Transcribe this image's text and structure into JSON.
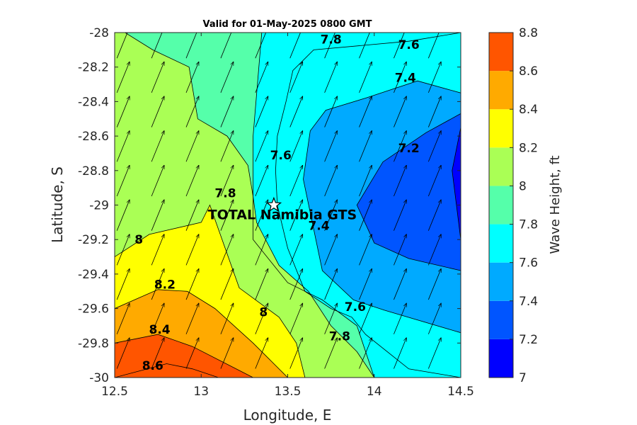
{
  "chart_data": {
    "type": "heatmap",
    "subtype": "filled-contour-with-wind-vectors",
    "title": "Valid for 01-May-2025 0800 GMT",
    "xlabel": "Longitude, E",
    "ylabel": "Latitude, S",
    "xlim": [
      12.5,
      14.5
    ],
    "ylim": [
      -30,
      -28
    ],
    "x_ticks": [
      "12.5",
      "13",
      "13.5",
      "14",
      "14.5"
    ],
    "y_ticks": [
      "-28",
      "-28.2",
      "-28.4",
      "-28.6",
      "-28.8",
      "-29",
      "-29.2",
      "-29.4",
      "-29.6",
      "-29.8",
      "-30"
    ],
    "grid": false,
    "colorbar": {
      "label": "Wave Height, ft",
      "placement": "right",
      "levels": [
        7.0,
        7.2,
        7.4,
        7.6,
        7.8,
        8.0,
        8.2,
        8.4,
        8.6,
        8.8
      ],
      "tick_labels": [
        "7",
        "7.2",
        "7.4",
        "7.6",
        "7.8",
        "8",
        "8.2",
        "8.4",
        "8.6",
        "8.8"
      ],
      "colors": [
        "#0000ff",
        "#0055ff",
        "#00aaff",
        "#00ffff",
        "#55ffaa",
        "#aaff55",
        "#ffff00",
        "#ffaa00",
        "#ff5500"
      ]
    },
    "contour_labels": [
      {
        "text": "7.8",
        "lon": 13.75,
        "lat": -28.04
      },
      {
        "text": "7.6",
        "lon": 14.2,
        "lat": -28.07
      },
      {
        "text": "7.4",
        "lon": 14.18,
        "lat": -28.26
      },
      {
        "text": "7.2",
        "lon": 14.2,
        "lat": -28.67
      },
      {
        "text": "7.6",
        "lon": 13.46,
        "lat": -28.71
      },
      {
        "text": "7.8",
        "lon": 13.14,
        "lat": -28.93
      },
      {
        "text": "8",
        "lon": 12.64,
        "lat": -29.2
      },
      {
        "text": "7.4",
        "lon": 13.68,
        "lat": -29.12
      },
      {
        "text": "8.2",
        "lon": 12.79,
        "lat": -29.46
      },
      {
        "text": "8",
        "lon": 13.36,
        "lat": -29.62
      },
      {
        "text": "7.6",
        "lon": 13.89,
        "lat": -29.59
      },
      {
        "text": "8.4",
        "lon": 12.76,
        "lat": -29.72
      },
      {
        "text": "7.8",
        "lon": 13.8,
        "lat": -29.76
      },
      {
        "text": "8.6",
        "lon": 12.72,
        "lat": -29.93
      }
    ],
    "station": {
      "name": "TOTAL Namibia GTS",
      "lon": 13.42,
      "lat": -29.0,
      "marker": "star"
    },
    "wind_vectors": {
      "direction": "toward north-north-east",
      "lon": [
        12.55,
        12.75,
        12.95,
        13.15,
        13.35,
        13.55,
        13.75,
        13.95,
        14.15,
        14.35
      ],
      "lat": [
        -28.05,
        -28.25,
        -28.45,
        -28.65,
        -28.85,
        -29.05,
        -29.25,
        -29.45,
        -29.65,
        -29.85
      ]
    },
    "contour_fill_regions": [
      {
        "level": 7.2,
        "lon": [
          14.5,
          14.3,
          14.05,
          13.9,
          14.0,
          14.2,
          14.5
        ],
        "lat": [
          -28.47,
          -28.58,
          -28.75,
          -29.0,
          -29.22,
          -29.31,
          -29.38
        ]
      },
      {
        "level": 7.0,
        "lon": [
          14.5,
          14.45,
          14.5
        ],
        "lat": [
          -28.55,
          -28.8,
          -29.2
        ]
      },
      {
        "level": 7.4,
        "lon": [
          14.5,
          14.25,
          13.95,
          13.72,
          13.63,
          13.59,
          13.7,
          13.88,
          14.06,
          14.5
        ],
        "lat": [
          -28.35,
          -28.28,
          -28.38,
          -28.45,
          -28.57,
          -28.85,
          -29.38,
          -29.55,
          -29.61,
          -29.74
        ]
      },
      {
        "level": 7.6,
        "lon": [
          14.5,
          14.2,
          13.65,
          13.53,
          13.49,
          13.44,
          13.43,
          13.44,
          13.5,
          13.6,
          13.75,
          13.87,
          13.95,
          14.2,
          14.5
        ],
        "lat": [
          -28.0,
          -28.05,
          -28.1,
          -28.22,
          -28.4,
          -28.6,
          -28.8,
          -29.0,
          -29.25,
          -29.5,
          -29.6,
          -29.65,
          -29.75,
          -29.95,
          -30.0
        ]
      },
      {
        "level": 7.8,
        "lon": [
          12.5,
          12.55,
          12.72,
          13.0,
          13.2,
          13.35,
          13.3,
          13.3,
          13.5,
          13.7,
          13.9,
          14.0,
          14.5
        ],
        "lat": [
          -28.0,
          -28.0,
          -28.0,
          -28.0,
          -28.0,
          -28.0,
          -28.6,
          -29.2,
          -29.45,
          -29.55,
          -29.7,
          -30.0,
          -30.0
        ]
      },
      {
        "level": 8.0,
        "lon": [
          12.5,
          12.56,
          12.72,
          12.93,
          12.98,
          13.15,
          13.27,
          13.3,
          13.32,
          13.45,
          13.62,
          13.75,
          13.9,
          14.0
        ],
        "lat": [
          -28.0,
          -28.0,
          -28.1,
          -28.2,
          -28.5,
          -28.6,
          -28.77,
          -28.95,
          -29.1,
          -29.35,
          -29.5,
          -29.7,
          -29.85,
          -30.0
        ]
      },
      {
        "level": 8.2,
        "lon": [
          12.5,
          12.7,
          13.0,
          13.05,
          13.22,
          13.45,
          13.55,
          13.6
        ],
        "lat": [
          -29.3,
          -29.17,
          -29.1,
          -29.0,
          -29.48,
          -29.65,
          -29.8,
          -30.0
        ]
      },
      {
        "level": 8.4,
        "lon": [
          12.5,
          12.75,
          12.92,
          13.08,
          13.3,
          13.5
        ],
        "lat": [
          -29.6,
          -29.49,
          -29.5,
          -29.6,
          -29.8,
          -30.0
        ]
      },
      {
        "level": 8.6,
        "lon": [
          12.5,
          12.75,
          12.95,
          13.3
        ],
        "lat": [
          -29.8,
          -29.75,
          -29.82,
          -30.0
        ]
      },
      {
        "level": 8.8,
        "lon": [
          12.5,
          12.8,
          12.95,
          13.1
        ],
        "lat": [
          -30.0,
          -29.92,
          -29.95,
          -30.0
        ]
      }
    ]
  }
}
